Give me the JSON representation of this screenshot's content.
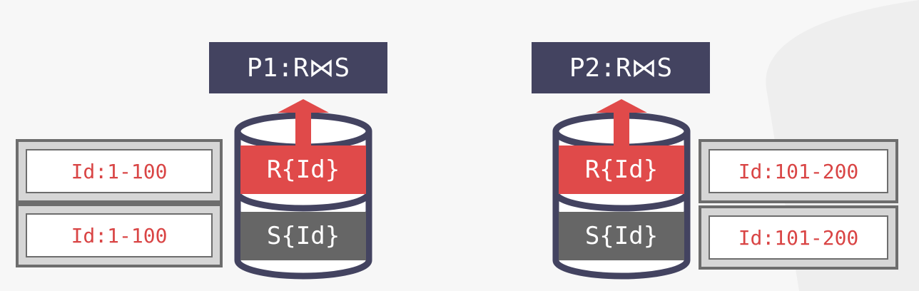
{
  "partitions": [
    {
      "join_label": "P1:R⋈S",
      "r_label": "R{Id}",
      "s_label": "S{Id}",
      "r_range": "Id:1-100",
      "s_range": "Id:1-100"
    },
    {
      "join_label": "P2:R⋈S",
      "r_label": "R{Id}",
      "s_label": "S{Id}",
      "r_range": "Id:101-200",
      "s_range": "Id:101-200"
    }
  ],
  "colors": {
    "process_box": "#434360",
    "r_band": "#e04a4a",
    "s_band": "#666666",
    "arrow": "#e04a4a",
    "range_text": "#d94545"
  }
}
